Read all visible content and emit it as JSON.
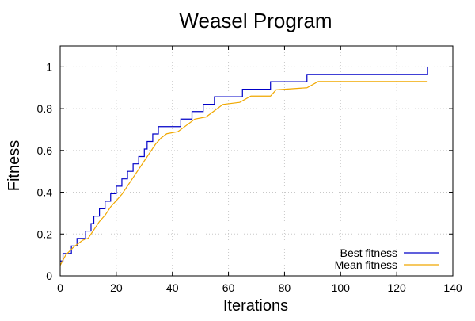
{
  "chart_data": {
    "type": "line",
    "title": "Weasel Program",
    "xlabel": "Iterations",
    "ylabel": "Fitness",
    "xlim": [
      0,
      140
    ],
    "ylim": [
      0,
      1.1
    ],
    "xticks": [
      0,
      20,
      40,
      60,
      80,
      100,
      120,
      140
    ],
    "yticks": [
      0,
      0.2,
      0.4,
      0.6,
      0.8,
      1
    ],
    "grid": true,
    "legend_position": "bottom-right",
    "series": [
      {
        "name": "Best fitness",
        "color": "#0000c8",
        "style": "step",
        "points": [
          [
            0,
            0.071
          ],
          [
            1,
            0.107
          ],
          [
            4,
            0.143
          ],
          [
            6,
            0.179
          ],
          [
            9,
            0.214
          ],
          [
            11,
            0.25
          ],
          [
            12,
            0.286
          ],
          [
            14,
            0.321
          ],
          [
            16,
            0.357
          ],
          [
            18,
            0.393
          ],
          [
            20,
            0.429
          ],
          [
            22,
            0.464
          ],
          [
            24,
            0.5
          ],
          [
            26,
            0.536
          ],
          [
            28,
            0.571
          ],
          [
            30,
            0.607
          ],
          [
            31,
            0.643
          ],
          [
            33,
            0.679
          ],
          [
            35,
            0.714
          ],
          [
            43,
            0.75
          ],
          [
            47,
            0.786
          ],
          [
            51,
            0.821
          ],
          [
            55,
            0.857
          ],
          [
            65,
            0.893
          ],
          [
            75,
            0.929
          ],
          [
            88,
            0.964
          ],
          [
            131,
            1.0
          ]
        ]
      },
      {
        "name": "Mean fitness",
        "color": "#f0a800",
        "style": "line",
        "points": [
          [
            0,
            0.05
          ],
          [
            2,
            0.1
          ],
          [
            5,
            0.14
          ],
          [
            8,
            0.17
          ],
          [
            10,
            0.18
          ],
          [
            12,
            0.22
          ],
          [
            14,
            0.26
          ],
          [
            16,
            0.29
          ],
          [
            18,
            0.33
          ],
          [
            20,
            0.36
          ],
          [
            22,
            0.39
          ],
          [
            24,
            0.43
          ],
          [
            26,
            0.47
          ],
          [
            28,
            0.51
          ],
          [
            30,
            0.55
          ],
          [
            32,
            0.59
          ],
          [
            34,
            0.63
          ],
          [
            36,
            0.66
          ],
          [
            38,
            0.68
          ],
          [
            42,
            0.69
          ],
          [
            45,
            0.72
          ],
          [
            48,
            0.75
          ],
          [
            52,
            0.76
          ],
          [
            55,
            0.79
          ],
          [
            58,
            0.82
          ],
          [
            64,
            0.83
          ],
          [
            68,
            0.86
          ],
          [
            75,
            0.86
          ],
          [
            77,
            0.89
          ],
          [
            88,
            0.9
          ],
          [
            92,
            0.93
          ],
          [
            100,
            0.93
          ],
          [
            110,
            0.93
          ],
          [
            120,
            0.93
          ],
          [
            131,
            0.93
          ]
        ]
      }
    ]
  }
}
